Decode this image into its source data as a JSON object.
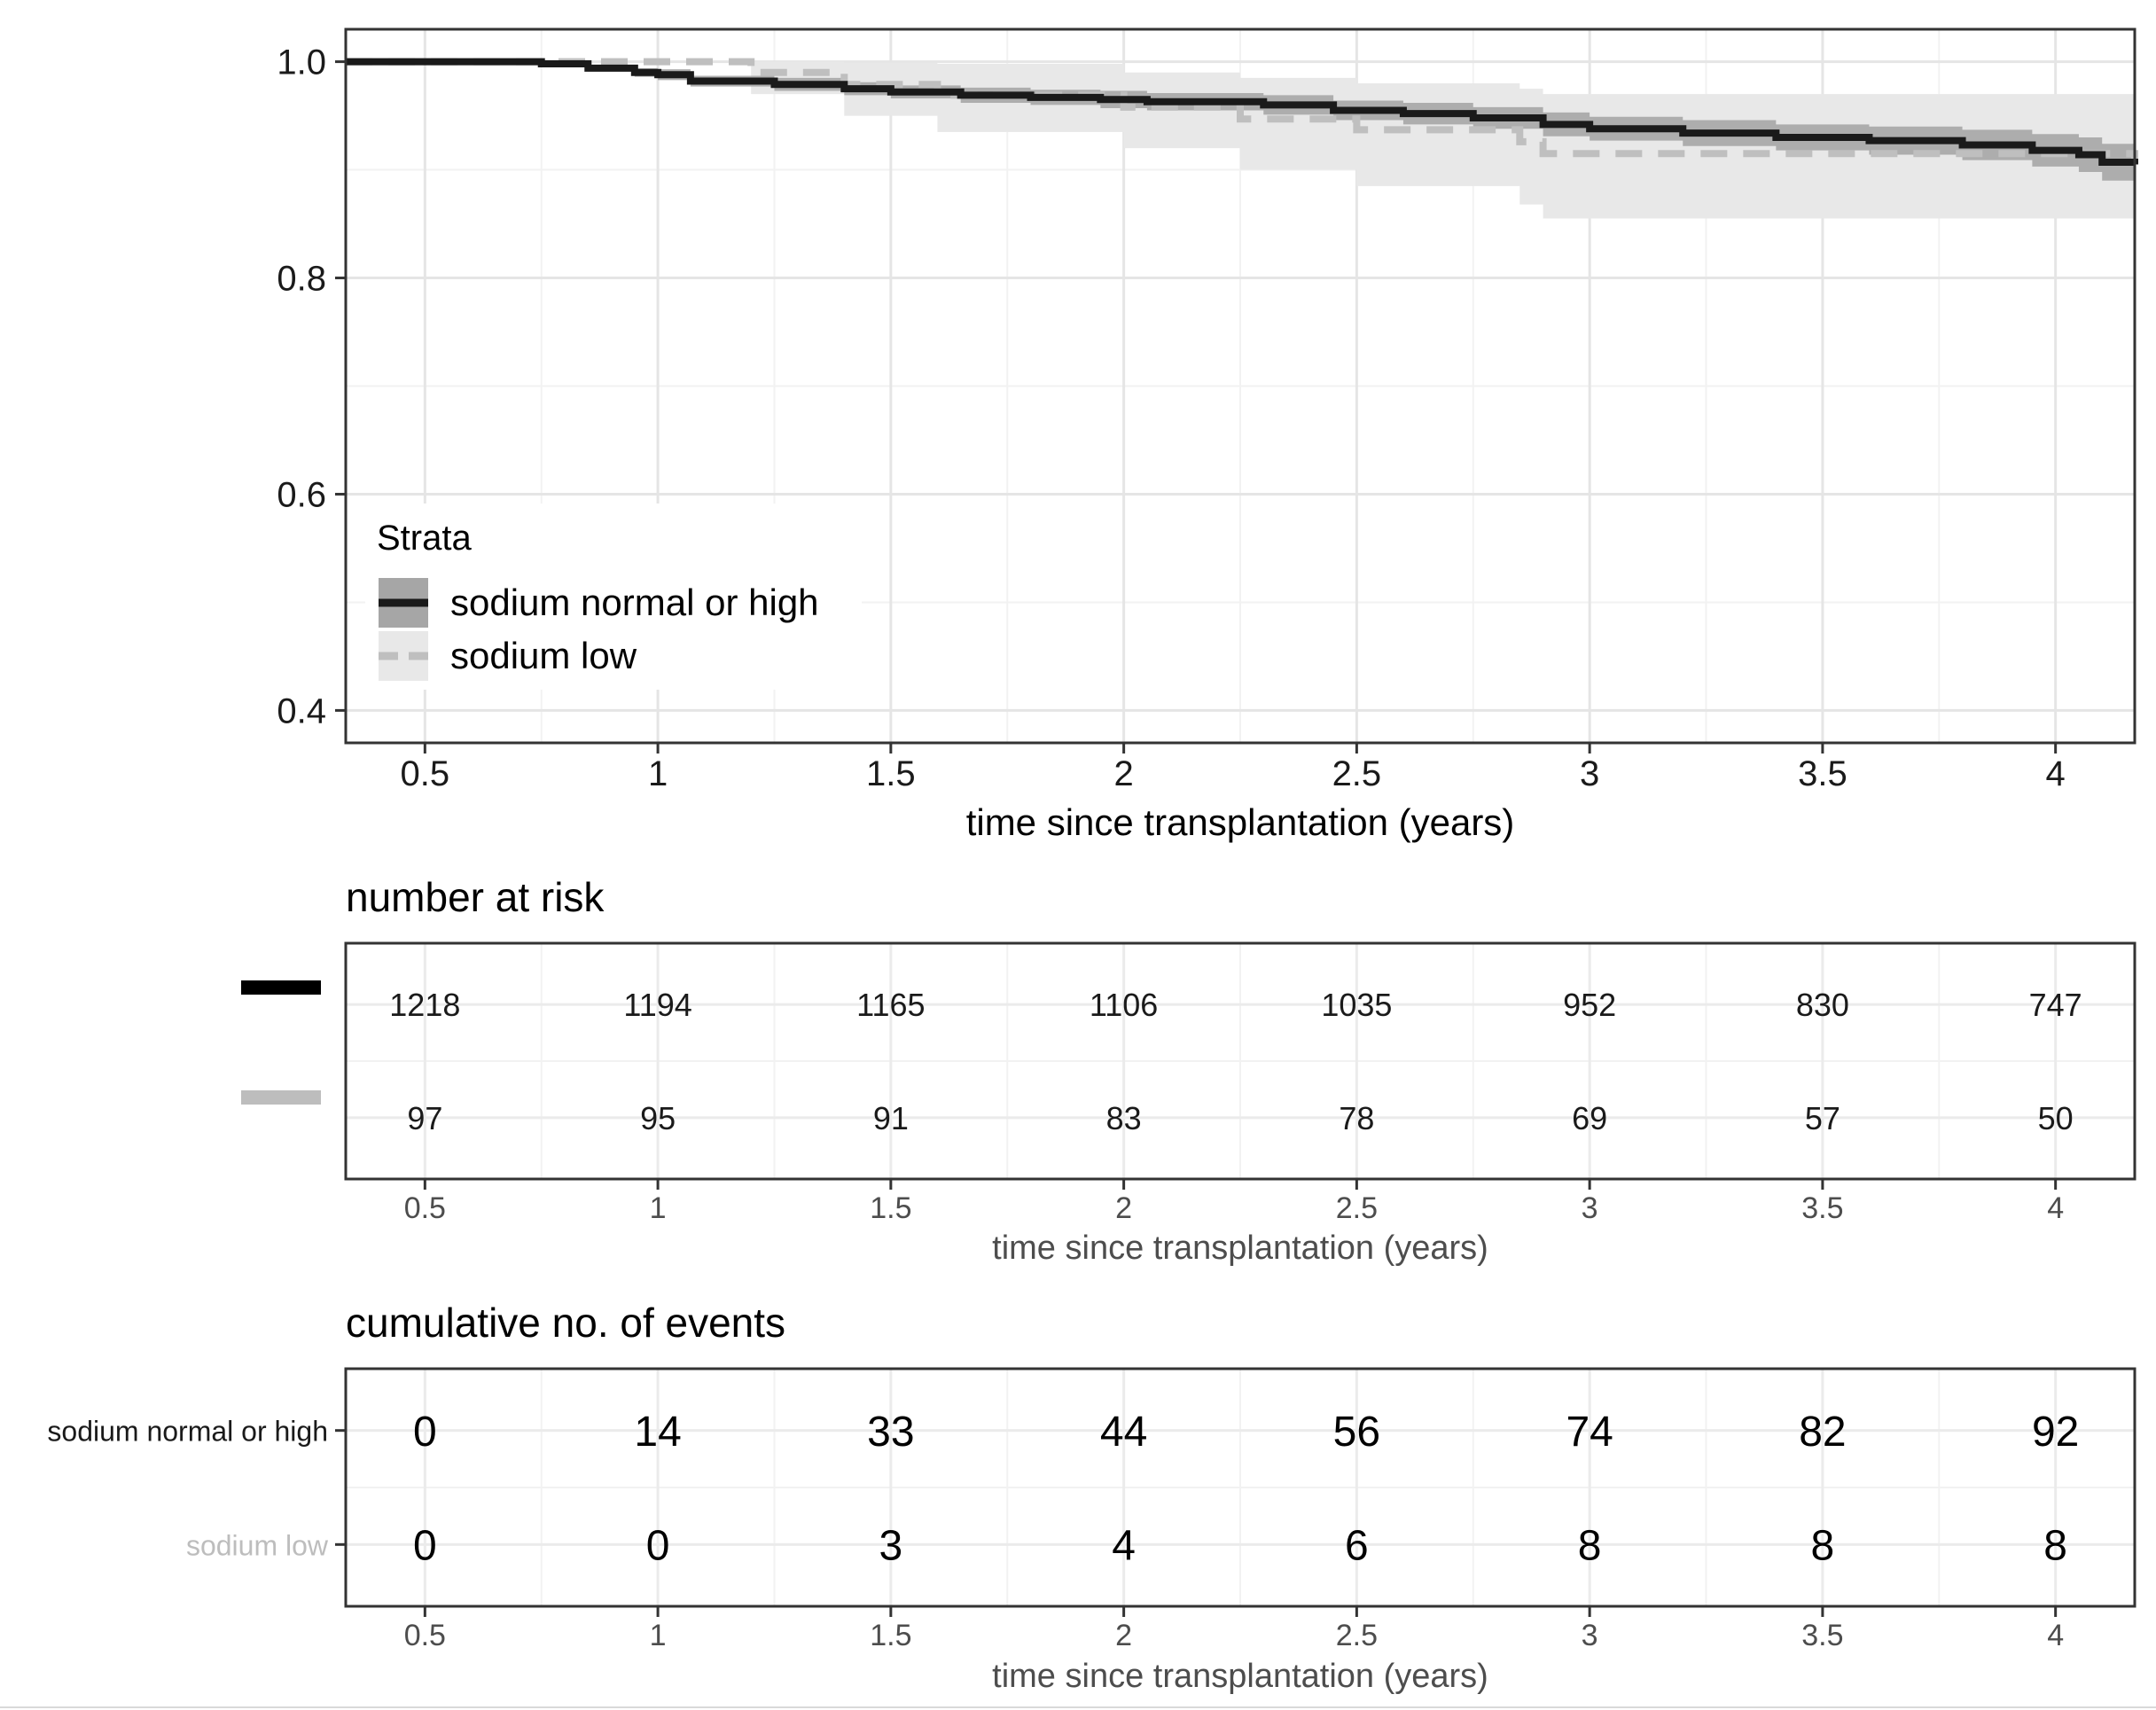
{
  "chart_data": [
    {
      "type": "line",
      "subtype": "kaplan-meier",
      "title": "",
      "xlabel": "time since transplantation (years)",
      "ylabel": "",
      "xlim": [
        0.33,
        4.17
      ],
      "ylim": [
        0.37,
        1.03
      ],
      "xticks": [
        "0.5",
        "1",
        "1.5",
        "2",
        "2.5",
        "3",
        "3.5",
        "4"
      ],
      "yticks": [
        "0.4",
        "0.6",
        "0.8",
        "1.0"
      ],
      "legend": {
        "title": "Strata",
        "position": "bottom-left",
        "entries": [
          "sodium normal or high",
          "sodium low"
        ]
      },
      "series": [
        {
          "name": "sodium normal or high",
          "color": "#1a1a1a",
          "band_color": "#a6a6a6",
          "x": [
            0.33,
            0.75,
            0.85,
            0.95,
            1.0,
            1.07,
            1.25,
            1.4,
            1.5,
            1.65,
            1.8,
            1.95,
            2.05,
            2.3,
            2.45,
            2.6,
            2.75,
            2.9,
            3.0,
            3.2,
            3.4,
            3.6,
            3.8,
            3.95,
            4.05,
            4.1,
            4.17
          ],
          "y": [
            1.0,
            0.998,
            0.994,
            0.99,
            0.988,
            0.982,
            0.979,
            0.975,
            0.972,
            0.969,
            0.967,
            0.965,
            0.963,
            0.96,
            0.955,
            0.952,
            0.948,
            0.942,
            0.938,
            0.934,
            0.93,
            0.927,
            0.923,
            0.918,
            0.914,
            0.907,
            0.905
          ],
          "lower": [
            1.0,
            0.996,
            0.991,
            0.986,
            0.983,
            0.977,
            0.973,
            0.969,
            0.966,
            0.962,
            0.96,
            0.957,
            0.955,
            0.951,
            0.946,
            0.942,
            0.938,
            0.931,
            0.927,
            0.922,
            0.918,
            0.914,
            0.909,
            0.903,
            0.898,
            0.89,
            0.888
          ],
          "upper": [
            1.0,
            1.0,
            0.997,
            0.994,
            0.993,
            0.987,
            0.985,
            0.981,
            0.978,
            0.976,
            0.974,
            0.973,
            0.971,
            0.969,
            0.964,
            0.962,
            0.958,
            0.953,
            0.949,
            0.946,
            0.942,
            0.94,
            0.937,
            0.933,
            0.93,
            0.924,
            0.922
          ]
        },
        {
          "name": "sodium low",
          "color": "#bfbfbf",
          "band_color": "#e8e8e8",
          "x": [
            0.33,
            1.2,
            1.4,
            1.6,
            2.0,
            2.25,
            2.5,
            2.85,
            2.9,
            4.0,
            4.17
          ],
          "y": [
            1.0,
            0.99,
            0.979,
            0.969,
            0.958,
            0.947,
            0.937,
            0.926,
            0.915,
            0.915,
            0.91
          ],
          "lower": [
            1.0,
            0.97,
            0.95,
            0.935,
            0.92,
            0.9,
            0.885,
            0.868,
            0.855,
            0.855,
            0.85
          ],
          "upper": [
            1.0,
            1.0,
            0.999,
            0.998,
            0.99,
            0.985,
            0.98,
            0.975,
            0.97,
            0.97,
            0.968
          ]
        }
      ]
    },
    {
      "type": "table",
      "title": "number at risk",
      "xlabel": "time since transplantation (years)",
      "columns": [
        "0.5",
        "1",
        "1.5",
        "2",
        "2.5",
        "3",
        "3.5",
        "4"
      ],
      "rows": [
        {
          "name": "sodium normal or high",
          "color": "#000000",
          "values": [
            "1218",
            "1194",
            "1165",
            "1106",
            "1035",
            "952",
            "830",
            "747"
          ]
        },
        {
          "name": "sodium low",
          "color": "#bdbdbd",
          "values": [
            "97",
            "95",
            "91",
            "83",
            "78",
            "69",
            "57",
            "50"
          ]
        }
      ]
    },
    {
      "type": "table",
      "title": "cumulative no. of events",
      "xlabel": "time since transplantation (years)",
      "columns": [
        "0.5",
        "1",
        "1.5",
        "2",
        "2.5",
        "3",
        "3.5",
        "4"
      ],
      "rows": [
        {
          "name": "sodium normal or high",
          "label": "sodium normal or high",
          "color": "#000000",
          "values": [
            "0",
            "14",
            "33",
            "44",
            "56",
            "74",
            "82",
            "92"
          ]
        },
        {
          "name": "sodium low",
          "label": "sodium low",
          "color": "#bdbdbd",
          "values": [
            "0",
            "0",
            "3",
            "4",
            "6",
            "8",
            "8",
            "8"
          ]
        }
      ]
    }
  ]
}
